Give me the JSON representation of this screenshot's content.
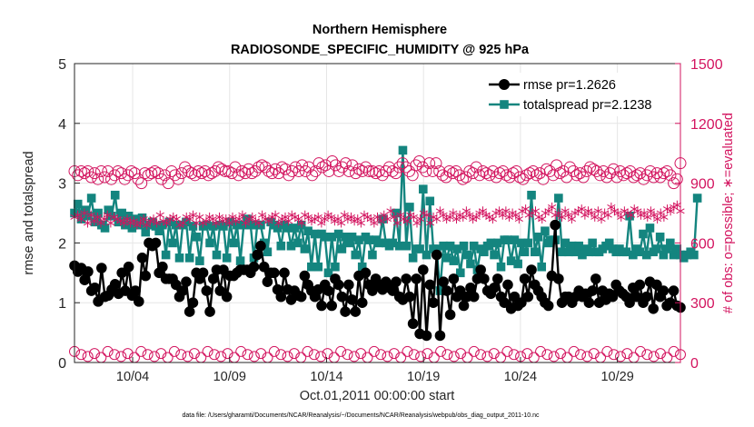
{
  "chart_data": {
    "type": "line",
    "title": "Northern Hemisphere",
    "subtitle": "RADIOSONDE_SPECIFIC_HUMIDITY @ 925 hPa",
    "xlabel": "Oct.01,2011 00:00:00 start",
    "ylabel": "rmse and totalspread",
    "ylabel_right": "# of obs: o=possible; ∗=evaluated",
    "footnote": "data file: /Users/gharamti/Documents/NCAR/Reanalysis/~/Documents/NCAR/Reanalysis/webpub/obs_diag_output_2011-10.nc",
    "x_tick_labels": [
      "10/04",
      "10/09",
      "10/14",
      "10/19",
      "10/24",
      "10/29"
    ],
    "x_tick_days": [
      4,
      9,
      14,
      19,
      24,
      29
    ],
    "xlim": [
      1,
      32.25
    ],
    "ylim": [
      0,
      5
    ],
    "y_ticks": [
      0,
      1,
      2,
      3,
      4,
      5
    ],
    "ylim_right": [
      0,
      1500
    ],
    "y_ticks_right": [
      0,
      300,
      600,
      900,
      1200,
      1500
    ],
    "grid": true,
    "legend_position": "top-right",
    "colors": {
      "rmse": "#000000",
      "totalspread": "#14857f",
      "obs": "#d3145f"
    },
    "series": [
      {
        "name": "rmse pr=1.2626",
        "marker": "circle",
        "values": [
          1.62,
          1.52,
          1.58,
          1.38,
          1.52,
          1.2,
          1.25,
          1.02,
          1.58,
          1.1,
          1.12,
          1.22,
          1.31,
          1.15,
          1.5,
          1.2,
          1.6,
          1.12,
          1.2,
          1.02,
          1.75,
          1.45,
          2.0,
          1.95,
          2.0,
          1.5,
          1.6,
          1.4,
          1.4,
          1.4,
          1.3,
          1.1,
          1.2,
          1.35,
          0.85,
          1.0,
          1.5,
          1.4,
          1.5,
          1.2,
          0.85,
          1.4,
          1.55,
          1.2,
          1.55,
          1.1,
          1.45,
          1.45,
          1.5,
          1.55,
          1.55,
          1.55,
          1.5,
          1.6,
          1.8,
          1.95,
          1.6,
          1.35,
          1.5,
          1.5,
          1.22,
          1.1,
          1.5,
          1.22,
          1.05,
          1.2,
          1.12,
          1.1,
          1.45,
          1.3,
          1.2,
          1.1,
          1.22,
          0.95,
          1.3,
          1.2,
          0.95,
          1.4,
          1.3,
          1.1,
          0.85,
          1.3,
          1.05,
          0.85,
          1.45,
          1.0,
          1.5,
          1.3,
          1.2,
          1.4,
          1.3,
          1.22,
          1.35,
          1.25,
          1.2,
          1.35,
          1.1,
          1.05,
          1.4,
          1.1,
          0.65,
          1.4,
          0.48,
          1.55,
          0.45,
          1.3,
          1.0,
          1.8,
          0.45,
          1.35,
          1.2,
          0.8,
          1.4,
          1.1,
          1.2,
          0.95,
          1.1,
          1.25,
          1.1,
          1.4,
          1.55,
          1.4,
          1.2,
          1.15,
          1.25,
          1.4,
          1.1,
          1.0,
          1.3,
          0.9,
          1.1,
          0.95,
          1.0,
          1.4,
          1.1,
          1.55,
          1.3,
          1.2,
          1.1,
          1.0,
          0.95,
          1.45,
          2.3,
          1.4,
          1.0,
          1.1,
          1.1,
          1.0,
          1.1,
          1.2,
          1.1,
          1.15,
          1.0,
          1.2,
          1.4,
          1.0,
          1.2,
          1.05,
          1.15,
          1.1,
          1.3,
          1.2,
          1.15,
          1.1,
          1.0,
          1.25,
          1.1,
          1.3,
          1.0,
          1.1,
          1.35,
          0.9,
          1.3,
          1.1,
          1.2,
          0.95,
          1.0,
          1.2,
          0.95,
          0.92
        ]
      },
      {
        "name": "totalspread pr=2.1238",
        "marker": "square",
        "values": [
          2.5,
          2.65,
          2.4,
          2.55,
          2.45,
          2.75,
          2.35,
          2.5,
          2.3,
          2.25,
          2.55,
          2.45,
          2.8,
          2.35,
          2.5,
          2.3,
          2.45,
          2.25,
          2.4,
          2.3,
          2.42,
          2.18,
          2.3,
          2.35,
          2.28,
          2.2,
          2.3,
          1.8,
          2.35,
          2.0,
          2.3,
          1.75,
          2.3,
          2.35,
          1.75,
          2.28,
          2.1,
          1.7,
          2.28,
          2.3,
          2.0,
          2.28,
          1.8,
          2.3,
          2.28,
          1.75,
          2.35,
          2.0,
          2.3,
          1.7,
          2.3,
          2.4,
          2.3,
          1.75,
          2.3,
          2.3,
          2.0,
          1.85,
          2.35,
          2.3,
          2.25,
          1.95,
          2.3,
          2.25,
          1.95,
          2.25,
          2.0,
          2.3,
          1.9,
          2.2,
          1.6,
          2.15,
          1.6,
          2.15,
          2.1,
          1.5,
          2.1,
          1.6,
          2.15,
          1.9,
          2.1,
          2.0,
          2.1,
          1.8,
          2.05,
          1.6,
          2.1,
          2.05,
          1.8,
          2.05,
          2.0,
          2.4,
          2.0,
          1.95,
          2.0,
          2.5,
          1.95,
          3.55,
          1.95,
          2.6,
          1.75,
          1.9,
          1.9,
          2.9,
          1.8,
          2.7,
          1.9,
          1.9,
          1.2,
          1.95,
          1.75,
          1.95,
          1.7,
          1.9,
          1.5,
          1.95,
          1.8,
          1.65,
          1.95,
          1.55,
          1.9,
          1.85,
          1.95,
          2.0,
          1.8,
          2.0,
          1.6,
          2.05,
          2.05,
          1.7,
          2.05,
          1.65,
          2.0,
          1.85,
          2.0,
          2.8,
          1.85,
          2.1,
          1.6,
          2.2,
          2.0,
          2.05,
          2.05,
          2.75,
          1.85,
          2.0,
          1.85,
          1.95,
          1.85,
          1.95,
          1.8,
          1.9,
          1.85,
          2.0,
          1.85,
          1.85,
          1.9,
          1.95,
          2.0,
          1.9,
          1.85,
          1.9,
          1.85,
          1.85,
          2.45,
          1.8,
          1.9,
          1.85,
          2.15,
          1.8,
          2.25,
          1.85,
          1.9,
          2.1,
          1.8,
          1.9,
          2.0,
          1.8,
          1.9,
          1.8,
          1.75,
          1.8,
          1.85,
          1.8,
          2.75
        ]
      }
    ],
    "obs_possible": [
      960,
      940,
      960,
      950,
      960,
      930,
      950,
      920,
      960,
      930,
      960,
      920,
      940,
      960,
      950,
      920,
      940,
      960,
      950,
      920,
      900,
      950,
      940,
      950,
      960,
      950,
      920,
      940,
      900,
      960,
      940,
      920,
      950,
      980,
      960,
      950,
      940,
      960,
      950,
      960,
      940,
      950,
      960,
      980,
      970,
      960,
      960,
      950,
      980,
      940,
      960,
      950,
      970,
      950,
      960,
      980,
      990,
      980,
      960,
      950,
      970,
      950,
      980,
      970,
      940,
      960,
      980,
      960,
      990,
      960,
      980,
      940,
      960,
      1000,
      980,
      990,
      960,
      1010,
      990,
      960,
      980,
      1000,
      960,
      990,
      950,
      970,
      960,
      980,
      960,
      960,
      950,
      960,
      940,
      960,
      980,
      960,
      950,
      980,
      1000,
      980,
      960,
      940,
      990,
      1010,
      980,
      960,
      1000,
      960,
      1000,
      960,
      940,
      930,
      960,
      950,
      960,
      940,
      920,
      930,
      960,
      950,
      980,
      940,
      960,
      950,
      940,
      960,
      930,
      950,
      960,
      940,
      930,
      950,
      960,
      930,
      920,
      940,
      950,
      960,
      940,
      950,
      920,
      970,
      960,
      940,
      990,
      950,
      960,
      930,
      980,
      960,
      940,
      950,
      930,
      960,
      980,
      970,
      960,
      940,
      960,
      930,
      950,
      970,
      930,
      960,
      940,
      950,
      960,
      930,
      940,
      950,
      920,
      940,
      960,
      930,
      950,
      930,
      950,
      960,
      940,
      900,
      920,
      1000
    ],
    "obs_evaluated": [
      730,
      740,
      720,
      750,
      700,
      740,
      710,
      730,
      700,
      720,
      740,
      700,
      730,
      720,
      710,
      700,
      720,
      700,
      710,
      690,
      700,
      720,
      690,
      710,
      720,
      700,
      740,
      710,
      700,
      720,
      730,
      720,
      690,
      700,
      730,
      720,
      740,
      700,
      730,
      700,
      710,
      730,
      720,
      700,
      730,
      710,
      720,
      700,
      730,
      710,
      720,
      740,
      700,
      720,
      730,
      710,
      700,
      740,
      720,
      710,
      730,
      740,
      700,
      720,
      730,
      710,
      740,
      730,
      720,
      700,
      740,
      730,
      710,
      720,
      730,
      700,
      720,
      740,
      730,
      710,
      720,
      700,
      740,
      720,
      730,
      710,
      720,
      700,
      740,
      730,
      720,
      700,
      730,
      710,
      740,
      720,
      760,
      730,
      700,
      740,
      720,
      710,
      740,
      730,
      700,
      720,
      750,
      740,
      700,
      730,
      720,
      760,
      740,
      720,
      730,
      750,
      720,
      740,
      730,
      760,
      740,
      720,
      730,
      750,
      760,
      740,
      730,
      720,
      750,
      760,
      740,
      760,
      730,
      750,
      740,
      720,
      760,
      770,
      740,
      750,
      760,
      730,
      720,
      750,
      760,
      780,
      740,
      750,
      730,
      760,
      740,
      720,
      750,
      760,
      770,
      740,
      760,
      750,
      730,
      760,
      720,
      750,
      740,
      780,
      760,
      750,
      730,
      760,
      750,
      740,
      770,
      760,
      740,
      750,
      730,
      760,
      740,
      720,
      750,
      730,
      770,
      760,
      780,
      790,
      760
    ]
  }
}
